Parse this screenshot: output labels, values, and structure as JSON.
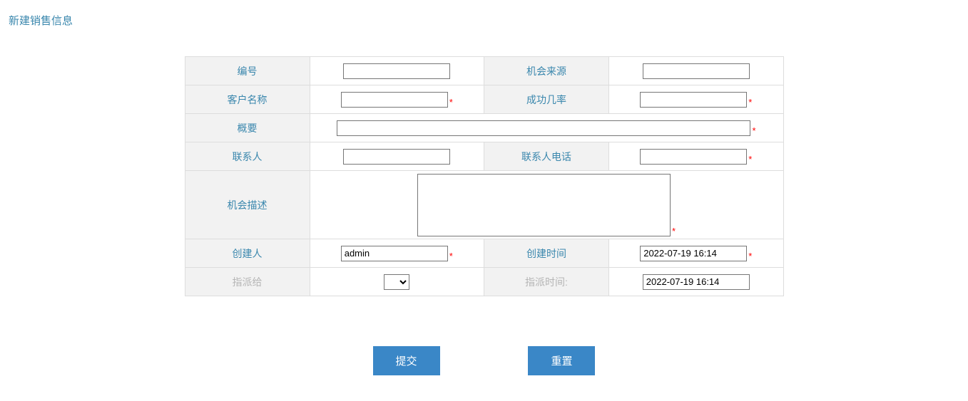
{
  "page": {
    "title": "新建销售信息"
  },
  "form": {
    "labels": {
      "id": "编号",
      "source": "机会来源",
      "customer": "客户名称",
      "success_rate": "成功几率",
      "summary": "概要",
      "contact": "联系人",
      "contact_phone": "联系人电话",
      "description": "机会描述",
      "creator": "创建人",
      "create_time": "创建时间",
      "assign_to": "指派给",
      "assign_time": "指派时间:"
    },
    "values": {
      "id": "",
      "source": "",
      "customer": "",
      "success_rate": "",
      "summary": "",
      "contact": "",
      "contact_phone": "",
      "description": "",
      "creator": "admin",
      "create_time": "2022-07-19 16:14",
      "assign_to": "",
      "assign_time": "2022-07-19 16:14"
    },
    "required_marker": "*"
  },
  "buttons": {
    "submit": "提交",
    "reset": "重置"
  },
  "colors": {
    "accent": "#3a87ad",
    "button_bg": "#3a87c7",
    "label_bg": "#f2f2f2",
    "border": "#dddddd",
    "disabled_text": "#b5b5b5",
    "required": "#ff0000"
  }
}
